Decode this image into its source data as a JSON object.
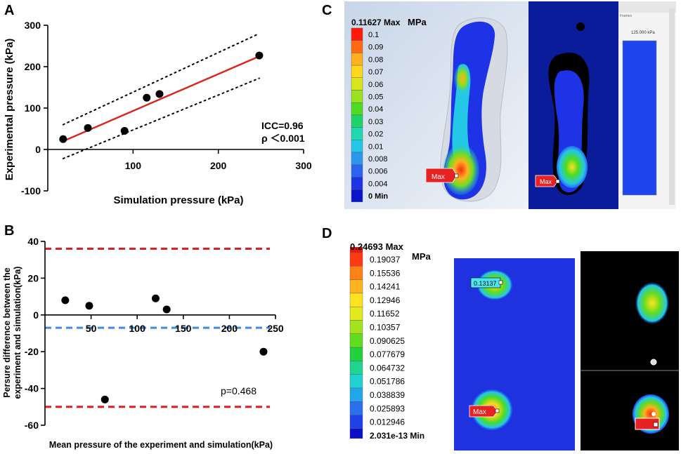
{
  "panels": {
    "a": "A",
    "b": "B",
    "c": "C",
    "d": "D"
  },
  "chart_data": [
    {
      "type": "scatter",
      "panel": "A",
      "xlabel": "Simulation pressure (kPa)",
      "ylabel": "Experimental pressure (kPa)",
      "xlim": [
        0,
        300
      ],
      "ylim": [
        -100,
        300
      ],
      "xticks": [
        "100",
        "200",
        "300"
      ],
      "yticks": [
        "-100",
        "0",
        "100",
        "200",
        "300"
      ],
      "points": [
        [
          18,
          25
        ],
        [
          47,
          52
        ],
        [
          90,
          45
        ],
        [
          116,
          125
        ],
        [
          131,
          134
        ],
        [
          248,
          227
        ]
      ],
      "fit_line": [
        [
          18,
          20
        ],
        [
          248,
          225
        ]
      ],
      "ci_upper": [
        [
          18,
          60
        ],
        [
          248,
          280
        ]
      ],
      "ci_lower": [
        [
          18,
          -22
        ],
        [
          248,
          172
        ]
      ],
      "annotation": [
        "ICC=0.96",
        "ρ ＜0.001"
      ]
    },
    {
      "type": "scatter",
      "panel": "B",
      "xlabel": "Mean pressure of the experiment and simulation(kPa)",
      "ylabel": "Persure difference between the experiment and simulation(kPa)",
      "ylabel_lines": [
        "Persure difference between the",
        "experiment and simulation(kPa)"
      ],
      "xlim": [
        0,
        250
      ],
      "ylim": [
        -60,
        40
      ],
      "xticks": [
        "50",
        "100",
        "150",
        "200",
        "250"
      ],
      "yticks": [
        "-60",
        "-40",
        "-20",
        "0",
        "20",
        "40"
      ],
      "points": [
        [
          22,
          8
        ],
        [
          48,
          5
        ],
        [
          65,
          -46
        ],
        [
          120,
          9
        ],
        [
          132,
          3
        ],
        [
          237,
          -20
        ]
      ],
      "mean_line": -7,
      "upper_loa": 36,
      "lower_loa": -50,
      "annotation": "p=0.468"
    }
  ],
  "legendC": {
    "title": "0.11627 Max",
    "unit": "MPa",
    "entries": [
      {
        "label": "0.1",
        "color": "#ff1a0a"
      },
      {
        "label": "0.09",
        "color": "#ff6a12"
      },
      {
        "label": "0.08",
        "color": "#ffb020"
      },
      {
        "label": "0.07",
        "color": "#ffd81e"
      },
      {
        "label": "0.06",
        "color": "#d8e61e"
      },
      {
        "label": "0.05",
        "color": "#9ae21c"
      },
      {
        "label": "0.04",
        "color": "#4cdc22"
      },
      {
        "label": "0.03",
        "color": "#1ed46a"
      },
      {
        "label": "0.02",
        "color": "#1ed8b0"
      },
      {
        "label": "0.01",
        "color": "#22c8e6"
      },
      {
        "label": "0.008",
        "color": "#2a96ee"
      },
      {
        "label": "0.006",
        "color": "#2a64ee"
      },
      {
        "label": "0.004",
        "color": "#1e32e6"
      }
    ],
    "bottom": "0 Min",
    "bottom_color": "#0a14c8"
  },
  "legendD": {
    "title": "0.24693 Max",
    "unit": "MPa",
    "entries": [
      {
        "label": "0.19037",
        "color": "#ff3a12"
      },
      {
        "label": "0.15536",
        "color": "#ff8218"
      },
      {
        "label": "0.14241",
        "color": "#ffb41e"
      },
      {
        "label": "0.12946",
        "color": "#ffe21e"
      },
      {
        "label": "0.11652",
        "color": "#e0ea1c"
      },
      {
        "label": "0.10357",
        "color": "#a4e21a"
      },
      {
        "label": "0.090625",
        "color": "#62dc1e"
      },
      {
        "label": "0.077679",
        "color": "#22d23c"
      },
      {
        "label": "0.064732",
        "color": "#1ed692"
      },
      {
        "label": "0.051786",
        "color": "#20d2d2"
      },
      {
        "label": "0.038839",
        "color": "#22a6ea"
      },
      {
        "label": "0.025893",
        "color": "#2870ee"
      },
      {
        "label": "0.012946",
        "color": "#2040ea"
      }
    ],
    "bottom": "2.031e-13 Min",
    "bottom_color": "#0a10c6"
  },
  "contourC": {
    "marker": "Max",
    "marker2": "Max",
    "frames_label": "Frames",
    "scale_label": "125.000 kPa"
  },
  "contourD": {
    "probe": "0.13137",
    "marker": "Max"
  }
}
